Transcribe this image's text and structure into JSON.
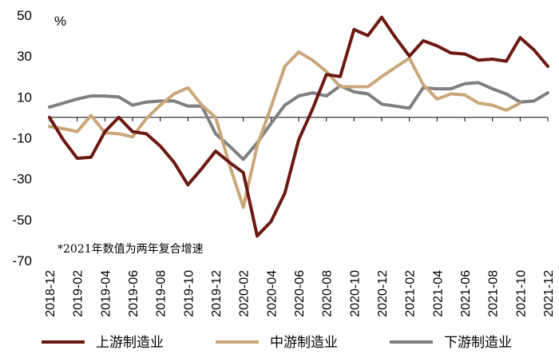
{
  "chart_data": {
    "type": "line",
    "unit_label": "%",
    "note": "*2021年数值为两年复合增速",
    "ylim": [
      -70,
      50
    ],
    "yticks": [
      50,
      30,
      10,
      -10,
      -30,
      -50,
      -70
    ],
    "categories": [
      "2018-12",
      "2019-01",
      "2019-02",
      "2019-03",
      "2019-04",
      "2019-05",
      "2019-06",
      "2019-07",
      "2019-08",
      "2019-09",
      "2019-10",
      "2019-11",
      "2019-12",
      "2020-01",
      "2020-02",
      "2020-03",
      "2020-04",
      "2020-05",
      "2020-06",
      "2020-07",
      "2020-08",
      "2020-09",
      "2020-10",
      "2020-11",
      "2020-12",
      "2021-01",
      "2021-02",
      "2021-03",
      "2021-04",
      "2021-05",
      "2021-06",
      "2021-07",
      "2021-08",
      "2021-09",
      "2021-10",
      "2021-11",
      "2021-12"
    ],
    "xtick_labels": [
      "2018-12",
      "2019-02",
      "2019-04",
      "2019-06",
      "2019-08",
      "2019-10",
      "2019-12",
      "2020-02",
      "2020-04",
      "2020-06",
      "2020-08",
      "2020-10",
      "2020-12",
      "2021-02",
      "2021-04",
      "2021-06",
      "2021-08",
      "2021-10",
      "2021-12"
    ],
    "series": [
      {
        "name": "上游制造业",
        "color": "#6b1a12",
        "values": [
          0,
          -11,
          -20,
          -19.5,
          -7,
          0,
          -7,
          -8,
          -14,
          -22,
          -33,
          -25,
          -16.5,
          -22,
          -27,
          -58,
          -51,
          -37,
          -11,
          4,
          21,
          20,
          43,
          40,
          49,
          39,
          30,
          37.5,
          35,
          31.5,
          31,
          28,
          28.5,
          27.5,
          39,
          33,
          25
        ]
      },
      {
        "name": "中游制造业",
        "color": "#c9a779",
        "values": [
          -4.5,
          -5.5,
          -7,
          1,
          -7.5,
          -8,
          -9.5,
          -0.5,
          6,
          11.5,
          14.5,
          6,
          0,
          -23,
          -44,
          -14,
          5,
          25,
          32,
          28,
          22.5,
          15,
          15,
          15,
          20,
          24.5,
          29,
          16,
          9,
          11.5,
          11,
          7,
          6,
          3.5,
          7,
          null,
          null
        ]
      },
      {
        "name": "下游制造业",
        "color": "#7f7f7f",
        "values": [
          5,
          7,
          9,
          10.5,
          10.5,
          10,
          6,
          7.5,
          8,
          8,
          5.5,
          5.5,
          -8,
          -14,
          -20.5,
          -12.5,
          -3,
          6,
          10.5,
          12,
          10.5,
          15.5,
          12.5,
          11.5,
          6.5,
          5.5,
          4.5,
          14.5,
          14,
          14,
          16.5,
          17,
          14,
          11.5,
          7.5,
          8,
          12
        ]
      }
    ]
  }
}
